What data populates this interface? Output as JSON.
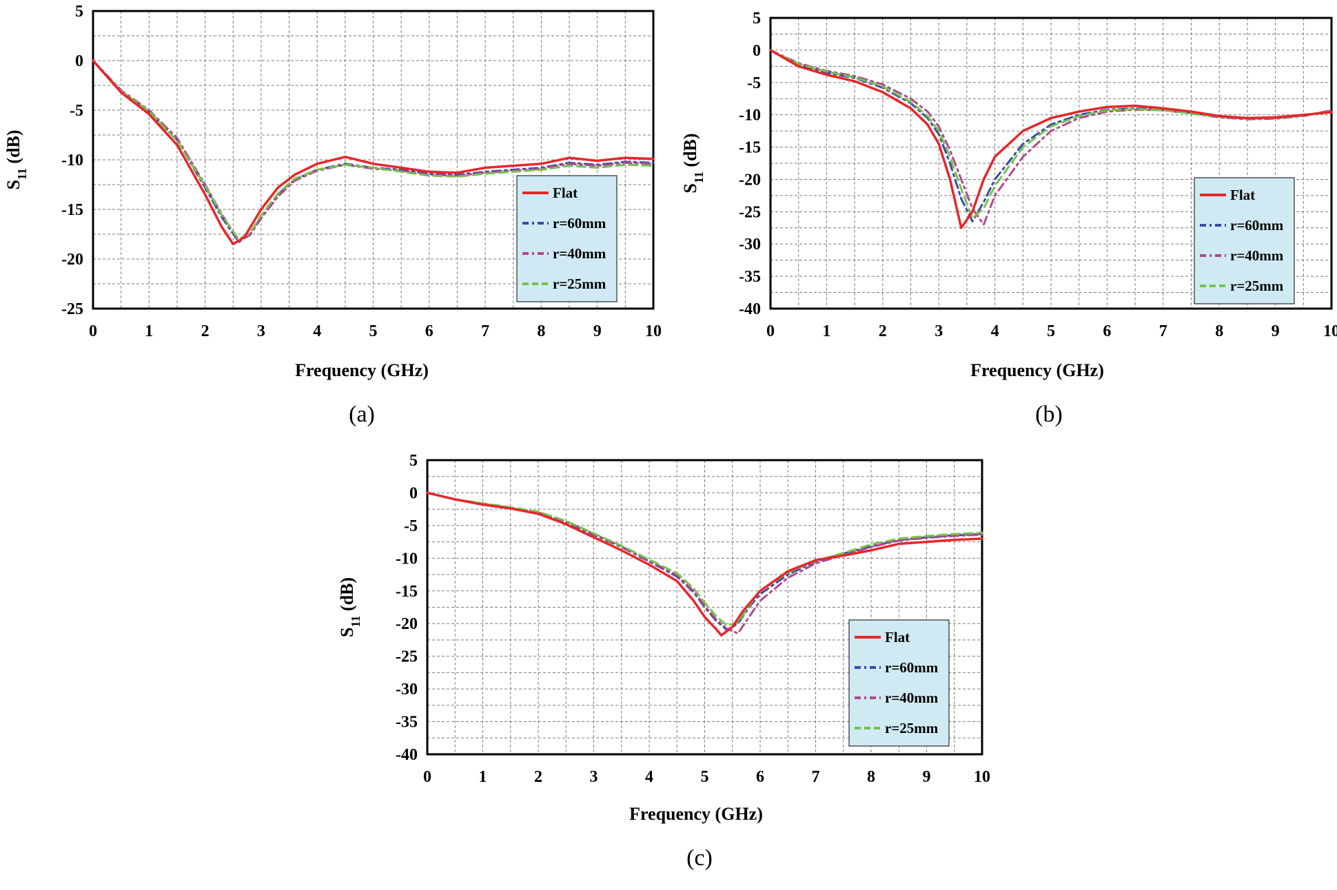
{
  "chart_data": [
    {
      "type": "line",
      "panel": "a",
      "caption": "(a)",
      "xlabel": "Frequency (GHz)",
      "ylabel_main": "S",
      "ylabel_sub": "11",
      "ylabel_rest": " (dB)",
      "xlim": [
        0,
        10
      ],
      "ylim": [
        -25,
        5
      ],
      "xticks": [
        0,
        1,
        2,
        3,
        4,
        5,
        6,
        7,
        8,
        9,
        10
      ],
      "yticks": [
        5,
        0,
        -5,
        -10,
        -15,
        -20,
        -25
      ],
      "xtick_labels": [
        "0",
        "1",
        "2",
        "3",
        "4",
        "5",
        "6",
        "7",
        "8",
        "9",
        "10"
      ],
      "ytick_labels": [
        "5",
        "0",
        "-5",
        "-10",
        "-15",
        "-20",
        "-25"
      ],
      "grid": true,
      "legend_position": "right",
      "series": [
        {
          "name": "Flat",
          "color": "#e8262a",
          "style": "solid",
          "x": [
            0,
            0.5,
            1,
            1.5,
            2,
            2.3,
            2.5,
            2.7,
            3,
            3.3,
            3.6,
            4,
            4.5,
            5,
            5.5,
            6,
            6.5,
            7,
            7.5,
            8,
            8.5,
            9,
            9.5,
            10
          ],
          "y": [
            0,
            -3.2,
            -5.4,
            -8.5,
            -13.5,
            -16.8,
            -18.5,
            -17.8,
            -15,
            -12.8,
            -11.5,
            -10.4,
            -9.7,
            -10.4,
            -10.8,
            -11.2,
            -11.3,
            -10.8,
            -10.6,
            -10.4,
            -9.8,
            -10.1,
            -9.8,
            -9.9
          ]
        },
        {
          "name": "r=60mm",
          "color": "#3a4aa8",
          "style": "dashdot",
          "x": [
            0,
            0.5,
            1,
            1.5,
            2,
            2.3,
            2.6,
            2.8,
            3,
            3.3,
            3.6,
            4,
            4.5,
            5,
            5.5,
            6,
            6.5,
            7,
            7.5,
            8,
            8.5,
            9,
            9.5,
            10
          ],
          "y": [
            0,
            -3,
            -5.2,
            -8,
            -12.8,
            -15.8,
            -18.3,
            -17.5,
            -15.8,
            -13.5,
            -12,
            -11,
            -10.4,
            -10.8,
            -11,
            -11.4,
            -11.5,
            -11.2,
            -11,
            -10.8,
            -10.3,
            -10.5,
            -10.2,
            -10.3
          ]
        },
        {
          "name": "r=40mm",
          "color": "#b0488f",
          "style": "dashdot",
          "x": [
            0,
            0.5,
            1,
            1.5,
            2,
            2.3,
            2.6,
            2.8,
            3,
            3.3,
            3.6,
            4,
            4.5,
            5,
            5.5,
            6,
            6.5,
            7,
            7.5,
            8,
            8.5,
            9,
            9.5,
            10
          ],
          "y": [
            0,
            -3,
            -5,
            -7.8,
            -12.5,
            -15.5,
            -18.2,
            -17.6,
            -15.9,
            -13.7,
            -12.1,
            -11.1,
            -10.5,
            -10.9,
            -11.1,
            -11.5,
            -11.6,
            -11.3,
            -11.1,
            -10.9,
            -10.4,
            -10.6,
            -10.3,
            -10.4
          ]
        },
        {
          "name": "r=25mm",
          "color": "#74c34a",
          "style": "dashed",
          "x": [
            0,
            0.5,
            1,
            1.5,
            2,
            2.3,
            2.6,
            2.8,
            3,
            3.3,
            3.6,
            4,
            4.5,
            5,
            5.5,
            6,
            6.5,
            7,
            7.5,
            8,
            8.5,
            9,
            9.5,
            10
          ],
          "y": [
            0,
            -3.1,
            -5.1,
            -8.1,
            -12.6,
            -15.6,
            -18,
            -17.4,
            -15.6,
            -13.4,
            -11.9,
            -11,
            -10.5,
            -10.8,
            -11.2,
            -11.6,
            -11.7,
            -11.4,
            -11.2,
            -11,
            -10.6,
            -10.8,
            -10.5,
            -10.6
          ]
        }
      ]
    },
    {
      "type": "line",
      "panel": "b",
      "caption": "(b)",
      "xlabel": "Frequency (GHz)",
      "ylabel_main": "S",
      "ylabel_sub": "11",
      "ylabel_rest": " (dB)",
      "xlim": [
        0,
        10
      ],
      "ylim": [
        -40,
        5
      ],
      "xticks": [
        0,
        1,
        2,
        3,
        4,
        5,
        6,
        7,
        8,
        9,
        10
      ],
      "yticks": [
        5,
        0,
        -5,
        -10,
        -15,
        -20,
        -25,
        -30,
        -35,
        -40
      ],
      "xtick_labels": [
        "0",
        "1",
        "2",
        "3",
        "4",
        "5",
        "6",
        "7",
        "8",
        "9",
        "10"
      ],
      "ytick_labels": [
        "5",
        "0",
        "-5",
        "-10",
        "-15",
        "-20",
        "-25",
        "-30",
        "-35",
        "-40"
      ],
      "grid": true,
      "legend_position": "right",
      "series": [
        {
          "name": "Flat",
          "color": "#e8262a",
          "style": "solid",
          "x": [
            0,
            0.5,
            1,
            1.5,
            2,
            2.5,
            2.8,
            3,
            3.2,
            3.4,
            3.6,
            3.8,
            4,
            4.5,
            5,
            5.5,
            6,
            6.5,
            7,
            7.5,
            8,
            8.5,
            9,
            9.5,
            10
          ],
          "y": [
            0,
            -2.5,
            -3.8,
            -4.8,
            -6.5,
            -9,
            -11.5,
            -14.5,
            -20,
            -27.5,
            -25,
            -20,
            -16.5,
            -12.5,
            -10.5,
            -9.5,
            -8.8,
            -8.6,
            -9,
            -9.5,
            -10.2,
            -10.5,
            -10.4,
            -10,
            -9.6
          ]
        },
        {
          "name": "r=60mm",
          "color": "#3a4aa8",
          "style": "dashdot",
          "x": [
            0,
            0.5,
            1,
            1.5,
            2,
            2.5,
            2.8,
            3,
            3.2,
            3.4,
            3.6,
            3.8,
            4,
            4.5,
            5,
            5.5,
            6,
            6.5,
            7,
            7.5,
            8,
            8.5,
            9,
            9.5,
            10
          ],
          "y": [
            0,
            -2.2,
            -3.5,
            -4.3,
            -5.8,
            -8.2,
            -10.5,
            -13,
            -17.5,
            -23,
            -26.5,
            -23.5,
            -20,
            -14.5,
            -11.5,
            -10,
            -9.2,
            -9,
            -9.2,
            -9.7,
            -10.3,
            -10.6,
            -10.5,
            -10.1,
            -9.4
          ]
        },
        {
          "name": "r=40mm",
          "color": "#b0488f",
          "style": "dashdot",
          "x": [
            0,
            0.5,
            1,
            1.5,
            2,
            2.5,
            2.8,
            3,
            3.2,
            3.4,
            3.6,
            3.8,
            4,
            4.5,
            5,
            5.5,
            6,
            6.5,
            7,
            7.5,
            8,
            8.5,
            9,
            9.5,
            10
          ],
          "y": [
            0,
            -2,
            -3.2,
            -4,
            -5.3,
            -7.5,
            -9.5,
            -11.8,
            -15.5,
            -20,
            -24.5,
            -27,
            -22.5,
            -16.5,
            -12.5,
            -10.5,
            -9.5,
            -9.2,
            -9.3,
            -9.8,
            -10.4,
            -10.7,
            -10.6,
            -10.2,
            -9.3
          ]
        },
        {
          "name": "r=25mm",
          "color": "#74c34a",
          "style": "dashed",
          "x": [
            0,
            0.5,
            1,
            1.5,
            2,
            2.5,
            2.8,
            3,
            3.2,
            3.4,
            3.6,
            3.8,
            4,
            4.5,
            5,
            5.5,
            6,
            6.5,
            7,
            7.5,
            8,
            8.5,
            9,
            9.5,
            10
          ],
          "y": [
            0,
            -2.1,
            -3.3,
            -4.2,
            -5.6,
            -8,
            -10.2,
            -12.5,
            -16.5,
            -21.5,
            -26,
            -24.5,
            -21,
            -15,
            -11.8,
            -10.2,
            -9.3,
            -9.1,
            -9.3,
            -9.8,
            -10.3,
            -10.6,
            -10.5,
            -10.1,
            -9.5
          ]
        }
      ]
    },
    {
      "type": "line",
      "panel": "c",
      "caption": "(c)",
      "xlabel": "Frequency (GHz)",
      "ylabel_main": "S",
      "ylabel_sub": "11",
      "ylabel_rest": " (dB)",
      "xlim": [
        0,
        10
      ],
      "ylim": [
        -40,
        5
      ],
      "xticks": [
        0,
        1,
        2,
        3,
        4,
        5,
        6,
        7,
        8,
        9,
        10
      ],
      "yticks": [
        5,
        0,
        -5,
        -10,
        -15,
        -20,
        -25,
        -30,
        -35,
        -40
      ],
      "xtick_labels": [
        "0",
        "1",
        "2",
        "3",
        "4",
        "5",
        "6",
        "7",
        "8",
        "9",
        "10"
      ],
      "ytick_labels": [
        "5",
        "0",
        "-5",
        "-10",
        "-15",
        "-20",
        "-25",
        "-30",
        "-35",
        "-40"
      ],
      "grid": true,
      "legend_position": "right",
      "series": [
        {
          "name": "Flat",
          "color": "#e8262a",
          "style": "solid",
          "x": [
            0,
            0.5,
            1,
            1.5,
            2,
            2.5,
            3,
            3.5,
            4,
            4.5,
            4.8,
            5,
            5.2,
            5.3,
            5.5,
            5.7,
            6,
            6.5,
            7,
            7.5,
            8,
            8.5,
            9,
            9.5,
            10
          ],
          "y": [
            0,
            -1,
            -1.8,
            -2.4,
            -3.2,
            -4.8,
            -6.8,
            -8.8,
            -11,
            -13.5,
            -16.5,
            -19,
            -20.8,
            -21.8,
            -20.5,
            -18,
            -15,
            -12,
            -10.3,
            -9.6,
            -8.8,
            -7.8,
            -7.5,
            -7.2,
            -7
          ]
        },
        {
          "name": "r=60mm",
          "color": "#3a4aa8",
          "style": "dashdot",
          "x": [
            0,
            0.5,
            1,
            1.5,
            2,
            2.5,
            3,
            3.5,
            4,
            4.5,
            4.8,
            5,
            5.2,
            5.4,
            5.6,
            5.8,
            6,
            6.5,
            7,
            7.5,
            8,
            8.5,
            9,
            9.5,
            10
          ],
          "y": [
            0,
            -1,
            -1.7,
            -2.3,
            -3,
            -4.5,
            -6.4,
            -8.3,
            -10.5,
            -12.8,
            -15.2,
            -17.5,
            -19.5,
            -21,
            -20,
            -17.5,
            -15.5,
            -12.5,
            -10.5,
            -9.3,
            -8.2,
            -7.2,
            -6.8,
            -6.5,
            -6.3
          ]
        },
        {
          "name": "r=40mm",
          "color": "#b0488f",
          "style": "dashdot",
          "x": [
            0,
            0.5,
            1,
            1.5,
            2,
            2.5,
            3,
            3.5,
            4,
            4.5,
            4.8,
            5,
            5.2,
            5.4,
            5.6,
            5.8,
            6,
            6.5,
            7,
            7.5,
            8,
            8.5,
            9,
            9.5,
            10
          ],
          "y": [
            0,
            -1,
            -1.7,
            -2.3,
            -3,
            -4.4,
            -6.3,
            -8.2,
            -10.4,
            -12.6,
            -15,
            -17.3,
            -19.3,
            -20.8,
            -21.5,
            -19,
            -16.5,
            -13,
            -10.8,
            -9.5,
            -8.3,
            -7.3,
            -6.9,
            -6.6,
            -6.4
          ]
        },
        {
          "name": "r=25mm",
          "color": "#74c34a",
          "style": "dashed",
          "x": [
            0,
            0.5,
            1,
            1.5,
            2,
            2.5,
            3,
            3.5,
            4,
            4.5,
            4.8,
            5,
            5.2,
            5.4,
            5.6,
            5.8,
            6,
            6.5,
            7,
            7.5,
            8,
            8.5,
            9,
            9.5,
            10
          ],
          "y": [
            0,
            -1,
            -1.6,
            -2.2,
            -2.9,
            -4.3,
            -6.2,
            -8.1,
            -10.2,
            -12.3,
            -14.6,
            -16.8,
            -18.8,
            -20.3,
            -19.8,
            -17.3,
            -15,
            -12.2,
            -10.4,
            -9.2,
            -7.9,
            -7,
            -6.6,
            -6.3,
            -6.1
          ]
        }
      ]
    }
  ]
}
